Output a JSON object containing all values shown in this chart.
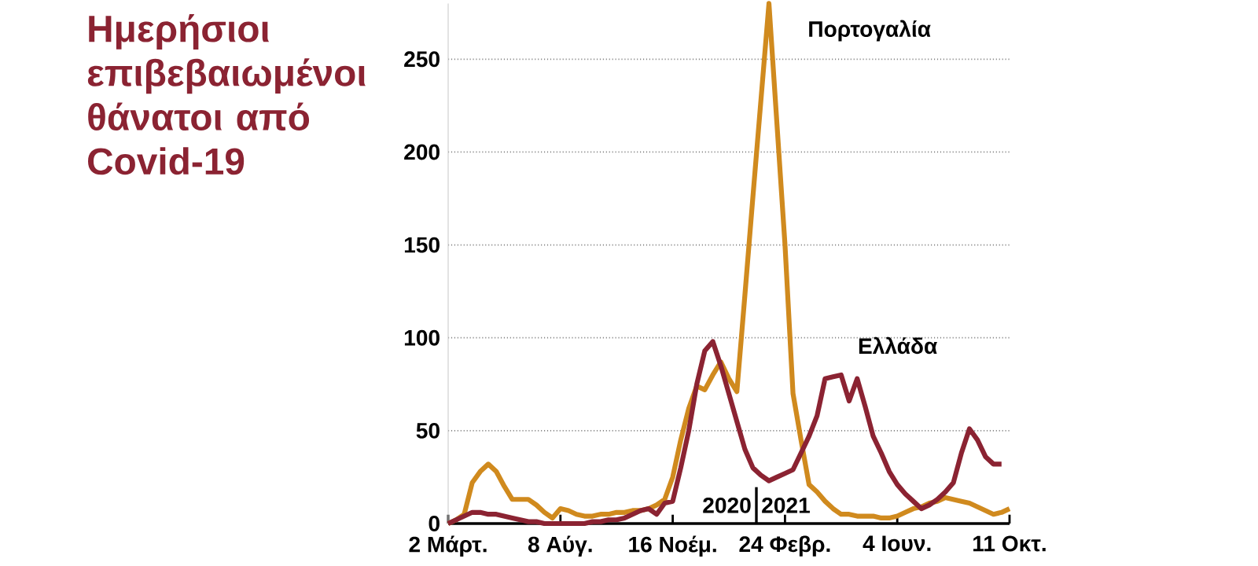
{
  "chart_data": {
    "type": "line",
    "title": "Ημερήσιοι επιβεβαιωμένοι θάνατοι από Covid-19",
    "categories": [
      "2 Μάρτ.",
      null,
      null,
      null,
      null,
      null,
      null,
      null,
      null,
      null,
      null,
      null,
      null,
      null,
      "8 Αύγ.",
      null,
      null,
      null,
      null,
      null,
      null,
      null,
      null,
      null,
      null,
      null,
      null,
      null,
      "16 Νοέμ.",
      null,
      null,
      null,
      null,
      null,
      null,
      null,
      null,
      null,
      null,
      null,
      null,
      null,
      "24 Φεβρ.",
      null,
      null,
      null,
      null,
      null,
      null,
      null,
      null,
      null,
      null,
      null,
      null,
      null,
      "4 Ιουν.",
      null,
      null,
      null,
      null,
      null,
      null,
      null,
      null,
      null,
      null,
      null,
      null,
      null,
      "11 Οκτ."
    ],
    "ylim": [
      0,
      280
    ],
    "yticks": [
      0,
      50,
      100,
      150,
      200,
      250
    ],
    "grid": "y",
    "series": [
      {
        "name": "Πορτογαλία",
        "color": "#d08a1e",
        "values": [
          0,
          2,
          5,
          22,
          28,
          32,
          28,
          20,
          13,
          13,
          13,
          10,
          6,
          3,
          8,
          7,
          5,
          4,
          4,
          5,
          5,
          6,
          6,
          7,
          7,
          8,
          10,
          13,
          25,
          45,
          62,
          74,
          72,
          80,
          87,
          78,
          71,
          123,
          176,
          228,
          280,
          215,
          150,
          70,
          45,
          21,
          17,
          12,
          8,
          5,
          5,
          4,
          4,
          4,
          3,
          3,
          4,
          6,
          8,
          9,
          11,
          12,
          14,
          13,
          12,
          11,
          9,
          7,
          5,
          6,
          8
        ]
      },
      {
        "name": "Ελλάδα",
        "color": "#8b2332",
        "values": [
          0,
          2,
          4,
          6,
          6,
          5,
          5,
          4,
          3,
          2,
          1,
          1,
          0,
          0,
          0,
          0,
          0,
          0,
          1,
          1,
          2,
          2,
          3,
          5,
          7,
          8,
          5,
          11,
          12,
          30,
          50,
          75,
          93,
          98,
          85,
          70,
          55,
          40,
          30,
          26,
          23,
          25,
          27,
          29,
          38,
          47,
          58,
          78,
          79,
          80,
          66,
          78,
          63,
          47,
          38,
          28,
          21,
          16,
          12,
          8,
          10,
          13,
          17,
          22,
          38,
          51,
          45,
          36,
          32,
          32,
          null
        ]
      }
    ],
    "annotations": [
      "2020",
      "2021"
    ]
  }
}
